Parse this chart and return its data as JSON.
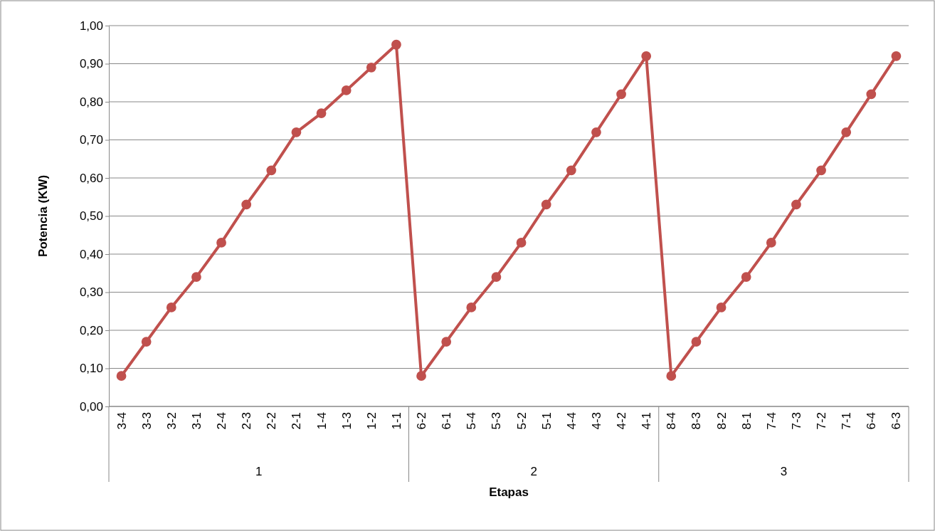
{
  "chart_data": {
    "type": "line",
    "xlabel": "Etapas",
    "ylabel": "Potencia (KW)",
    "categories": [
      "3-4",
      "3-3",
      "3-2",
      "3-1",
      "2-4",
      "2-3",
      "2-2",
      "2-1",
      "1-4",
      "1-3",
      "1-2",
      "1-1",
      "6-2",
      "6-1",
      "5-4",
      "5-3",
      "5-2",
      "5-1",
      "4-4",
      "4-3",
      "4-2",
      "4-1",
      "8-4",
      "8-3",
      "8-2",
      "8-1",
      "7-4",
      "7-3",
      "7-2",
      "7-1",
      "6-4",
      "6-3"
    ],
    "series": [
      {
        "color": "#c0504d",
        "values": [
          0.08,
          0.17,
          0.26,
          0.34,
          0.43,
          0.53,
          0.62,
          0.72,
          0.77,
          0.83,
          0.89,
          0.95,
          0.08,
          0.17,
          0.26,
          0.34,
          0.43,
          0.53,
          0.62,
          0.72,
          0.82,
          0.92,
          0.08,
          0.17,
          0.26,
          0.34,
          0.43,
          0.53,
          0.62,
          0.72,
          0.82,
          0.92
        ]
      }
    ],
    "ylim": [
      0,
      1
    ],
    "yticks": [
      {
        "value": 0,
        "label": "0,00"
      },
      {
        "value": 0.1,
        "label": "0,10"
      },
      {
        "value": 0.2,
        "label": "0,20"
      },
      {
        "value": 0.3,
        "label": "0,30"
      },
      {
        "value": 0.4,
        "label": "0,40"
      },
      {
        "value": 0.5,
        "label": "0,50"
      },
      {
        "value": 0.6,
        "label": "0,60"
      },
      {
        "value": 0.7,
        "label": "0,70"
      },
      {
        "value": 0.8,
        "label": "0,80"
      },
      {
        "value": 0.9,
        "label": "0,90"
      },
      {
        "value": 1,
        "label": "1,00"
      }
    ],
    "annotations": [
      "1",
      "2",
      "3"
    ],
    "grid": "y",
    "marker": "circle",
    "line_style": "solid"
  }
}
